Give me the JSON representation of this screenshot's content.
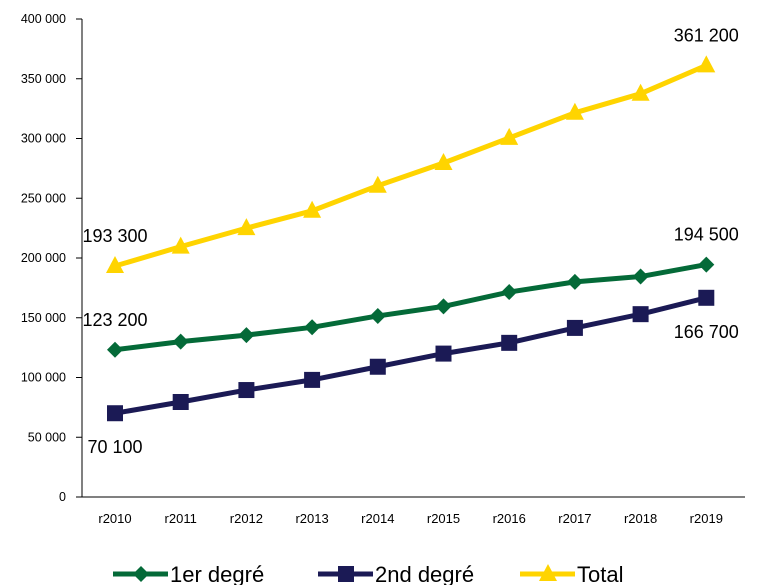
{
  "chart_data": {
    "type": "line",
    "categories": [
      "r2010",
      "r2011",
      "r2012",
      "r2013",
      "r2014",
      "r2015",
      "r2016",
      "r2017",
      "r2018",
      "r2019"
    ],
    "ylim": [
      0,
      400000
    ],
    "yticks": [
      "0",
      "50 000",
      "100 000",
      "150 000",
      "200 000",
      "250 000",
      "300 000",
      "350 000",
      "400 000"
    ],
    "grid": false,
    "legend_position": "bottom",
    "series": [
      {
        "name": "1er degré",
        "color": "#046A38",
        "marker": "diamond",
        "values": [
          123200,
          130000,
          135500,
          142000,
          151500,
          159500,
          171500,
          180000,
          184500,
          194500
        ]
      },
      {
        "name": "2nd degré",
        "color": "#1B1A55",
        "marker": "square",
        "values": [
          70100,
          79500,
          89500,
          98000,
          109000,
          120000,
          129000,
          141500,
          153000,
          166700
        ]
      },
      {
        "name": "Total",
        "color": "#FFD400",
        "marker": "triangle",
        "values": [
          193300,
          209500,
          225000,
          239500,
          260500,
          279500,
          300500,
          321500,
          337500,
          361200
        ]
      }
    ],
    "data_labels": [
      {
        "series": 2,
        "index": 0,
        "text": "193 300",
        "pos": "above"
      },
      {
        "series": 2,
        "index": 9,
        "text": "361 200",
        "pos": "above"
      },
      {
        "series": 0,
        "index": 0,
        "text": "123 200",
        "pos": "above"
      },
      {
        "series": 0,
        "index": 9,
        "text": "194 500",
        "pos": "above"
      },
      {
        "series": 1,
        "index": 0,
        "text": "70 100",
        "pos": "below"
      },
      {
        "series": 1,
        "index": 9,
        "text": "166 700",
        "pos": "below"
      }
    ]
  }
}
